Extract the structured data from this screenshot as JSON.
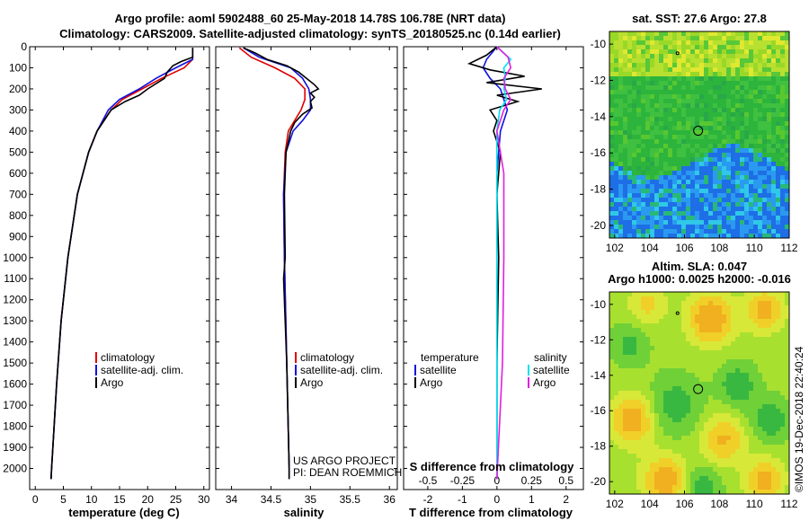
{
  "title": {
    "line1": "Argo profile: aoml 5902488_60 25-May-2018 14.78S 106.78E (NRT data)",
    "line2": "Climatology: CARS2009. Satellite-adjusted climatology: synTS_20180525.nc (0.14d earlier)"
  },
  "colors": {
    "climatology": "#e00000",
    "satellite": "#1010e0",
    "argo": "#000000",
    "sat_salinity": "#00e0f0",
    "argo_salinity": "#e020e0"
  },
  "chart_data": [
    {
      "type": "line",
      "title": "temperature profile",
      "xlabel": "temperature (deg C)",
      "xlim": [
        -1,
        31
      ],
      "ylim": [
        2100,
        0
      ],
      "x_ticks": [
        "0",
        "5",
        "10",
        "15",
        "20",
        "25",
        "30"
      ],
      "y_ticks": [
        "0",
        "100",
        "200",
        "300",
        "400",
        "500",
        "600",
        "700",
        "800",
        "900",
        "1000",
        "1100",
        "1200",
        "1300",
        "1400",
        "1500",
        "1600",
        "1700",
        "1800",
        "1900",
        "2000"
      ],
      "legend": [
        "climatology",
        "satellite-adj. clim.",
        "Argo"
      ],
      "series": [
        {
          "name": "climatology",
          "depth": [
            5,
            60,
            100,
            150,
            200,
            250,
            300,
            400,
            500,
            700,
            1000,
            1300,
            1600,
            2000,
            2050
          ],
          "values": [
            28,
            28,
            26.5,
            22.5,
            19,
            15.5,
            13.5,
            11,
            9.5,
            7.5,
            5.8,
            4.6,
            3.8,
            2.9,
            2.8
          ]
        },
        {
          "name": "satellite-adj. clim.",
          "depth": [
            5,
            60,
            100,
            150,
            200,
            250,
            300,
            400,
            500,
            700,
            1000,
            1300,
            1600,
            2000,
            2050
          ],
          "values": [
            28,
            28,
            25,
            21.5,
            18.5,
            15,
            13,
            11,
            9.5,
            7.5,
            5.8,
            4.6,
            3.8,
            2.9,
            2.8
          ]
        },
        {
          "name": "Argo",
          "depth": [
            5,
            50,
            70,
            90,
            120,
            150,
            200,
            230,
            260,
            300,
            400,
            500,
            700,
            1000,
            1300,
            1600,
            2000,
            2050
          ],
          "values": [
            28,
            28,
            26,
            24.5,
            23.5,
            23,
            20,
            18.5,
            16,
            13.5,
            11,
            9.5,
            7.5,
            5.8,
            4.6,
            3.8,
            2.9,
            2.8
          ]
        }
      ]
    },
    {
      "type": "line",
      "title": "salinity profile",
      "xlabel": "salinity",
      "xlim": [
        33.8,
        36.1
      ],
      "ylim": [
        2100,
        0
      ],
      "x_ticks": [
        "34",
        "34.5",
        "35",
        "35.5",
        "36"
      ],
      "legend": [
        "climatology",
        "satellite-adj. clim.",
        "Argo"
      ],
      "annotation": [
        "US ARGO PROJECT",
        "PI: DEAN ROEMMICH"
      ],
      "series": [
        {
          "name": "climatology",
          "depth": [
            5,
            50,
            100,
            150,
            200,
            250,
            300,
            350,
            400,
            500,
            700,
            1000,
            1500,
            2000,
            2050
          ],
          "values": [
            34.1,
            34.25,
            34.55,
            34.8,
            34.93,
            34.93,
            34.88,
            34.8,
            34.72,
            34.68,
            34.66,
            34.67,
            34.7,
            34.73,
            34.73
          ]
        },
        {
          "name": "satellite-adj. clim.",
          "depth": [
            5,
            50,
            100,
            150,
            200,
            250,
            300,
            350,
            400,
            500,
            700,
            1000,
            1500,
            2000,
            2050
          ],
          "values": [
            34.15,
            34.35,
            34.75,
            34.9,
            34.98,
            35.0,
            35.0,
            34.9,
            34.78,
            34.69,
            34.66,
            34.67,
            34.7,
            34.73,
            34.73
          ]
        },
        {
          "name": "Argo",
          "depth": [
            5,
            30,
            60,
            90,
            120,
            150,
            180,
            200,
            220,
            240,
            260,
            290,
            320,
            360,
            400,
            500,
            700,
            1000,
            1100,
            1500,
            2000,
            2050
          ],
          "values": [
            34.15,
            34.3,
            34.45,
            34.7,
            34.85,
            34.95,
            35.05,
            35.1,
            35.0,
            35.05,
            35.0,
            35.02,
            34.9,
            34.8,
            34.75,
            34.69,
            34.67,
            34.68,
            34.66,
            34.7,
            34.73,
            34.73
          ]
        }
      ]
    },
    {
      "type": "line",
      "title": "difference from climatology",
      "xlabel": "T difference from climatology",
      "xlabel_top": "S difference from climatology",
      "xlim": [
        -2.7,
        2.5
      ],
      "ylim": [
        2100,
        0
      ],
      "x_ticks": [
        "-2",
        "-1",
        "0",
        "1",
        "2"
      ],
      "x_ticks_top": [
        "-0.5",
        "-0.25",
        "0",
        "0.25",
        "0.5"
      ],
      "legend_temperature": [
        "satellite",
        "Argo"
      ],
      "legend_salinity": [
        "satellite",
        "Argo"
      ],
      "legend_headers": [
        "temperature",
        "salinity"
      ],
      "series": [
        {
          "name": "temperature satellite",
          "depth": [
            0,
            60,
            100,
            150,
            200,
            300,
            400,
            600,
            1000,
            1500,
            2050
          ],
          "values": [
            0,
            -0.3,
            -0.4,
            -0.2,
            0.1,
            0.3,
            0.1,
            0,
            0,
            0,
            0
          ]
        },
        {
          "name": "temperature Argo",
          "depth": [
            0,
            40,
            80,
            110,
            140,
            170,
            200,
            230,
            260,
            300,
            350,
            400,
            500,
            700,
            1000,
            1500,
            2050
          ],
          "values": [
            0,
            -0.3,
            -0.8,
            -0.2,
            0.8,
            -0.3,
            1.3,
            0,
            0.6,
            -0.2,
            0,
            -0.1,
            0.1,
            0,
            0.05,
            0,
            0
          ]
        },
        {
          "name": "salinity satellite",
          "depth": [
            0,
            60,
            100,
            150,
            200,
            250,
            300,
            400,
            600,
            1000,
            1500,
            2050
          ],
          "values": [
            0,
            0.1,
            0.05,
            0.06,
            0.05,
            0.07,
            0.02,
            0,
            0,
            0,
            0,
            0
          ]
        },
        {
          "name": "salinity Argo",
          "depth": [
            0,
            50,
            100,
            150,
            200,
            250,
            300,
            400,
            600,
            1000,
            1500,
            2050
          ],
          "values": [
            0,
            0.08,
            0.1,
            0.05,
            0.06,
            0.1,
            0.05,
            0,
            0.05,
            0.05,
            0.04,
            0
          ]
        }
      ]
    },
    {
      "type": "heatmap",
      "title": "sat. SST: 27.6 Argo: 27.8",
      "x_ticks": [
        "102",
        "104",
        "106",
        "108",
        "110",
        "112"
      ],
      "y_ticks": [
        "-10",
        "-12",
        "-14",
        "-16",
        "-18",
        "-20"
      ],
      "xlim": [
        101.7,
        112
      ],
      "ylim": [
        -9.3,
        -20.7
      ],
      "markers": [
        {
          "lon": 106.78,
          "lat": -14.78,
          "kind": "argo-position"
        },
        {
          "lon": 105.6,
          "lat": -10.5,
          "kind": "island"
        }
      ]
    },
    {
      "type": "heatmap",
      "title": "Altim. SLA: 0.047",
      "subtitle": "Argo h1000: 0.0025 h2000: -0.016",
      "x_ticks": [
        "102",
        "104",
        "106",
        "108",
        "110",
        "112"
      ],
      "y_ticks": [
        "-10",
        "-12",
        "-14",
        "-16",
        "-18",
        "-20"
      ],
      "xlim": [
        101.7,
        112
      ],
      "ylim": [
        -9.3,
        -20.7
      ],
      "markers": [
        {
          "lon": 106.78,
          "lat": -14.78,
          "kind": "argo-position"
        },
        {
          "lon": 105.6,
          "lat": -10.5,
          "kind": "island"
        }
      ]
    }
  ],
  "side_label": "©IMOS 19-Dec-2018 22:40:24"
}
